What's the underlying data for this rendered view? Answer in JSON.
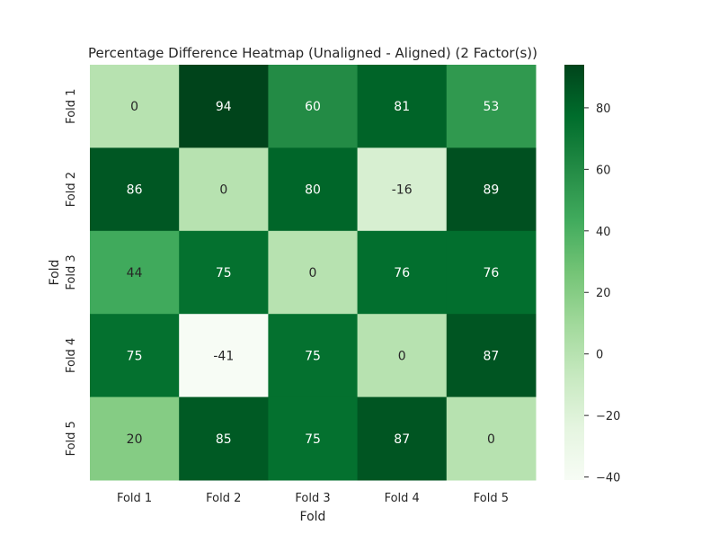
{
  "chart_data": {
    "type": "heatmap",
    "title": "Percentage Difference Heatmap (Unaligned - Aligned) (2 Factor(s))",
    "xlabel": "Fold",
    "ylabel": "Fold",
    "x_categories": [
      "Fold 1",
      "Fold 2",
      "Fold 3",
      "Fold 4",
      "Fold 5"
    ],
    "y_categories": [
      "Fold 1",
      "Fold 2",
      "Fold 3",
      "Fold 4",
      "Fold 5"
    ],
    "values": [
      [
        0,
        94,
        60,
        81,
        53
      ],
      [
        86,
        0,
        80,
        -16,
        89
      ],
      [
        44,
        75,
        0,
        76,
        76
      ],
      [
        75,
        -41,
        75,
        0,
        87
      ],
      [
        20,
        85,
        75,
        87,
        0
      ]
    ],
    "colorbar": {
      "range": [
        -41,
        94
      ],
      "ticks": [
        -40,
        -20,
        0,
        20,
        40,
        60,
        80
      ],
      "tick_labels": [
        "−40",
        "−20",
        "0",
        "20",
        "40",
        "60",
        "80"
      ]
    },
    "colormap": [
      "#f7fcf5",
      "#e5f5e0",
      "#c7e9c0",
      "#a1d99b",
      "#74c476",
      "#41ab5d",
      "#238b45",
      "#006d2c",
      "#00441b"
    ],
    "grid": false,
    "legend": "none"
  }
}
